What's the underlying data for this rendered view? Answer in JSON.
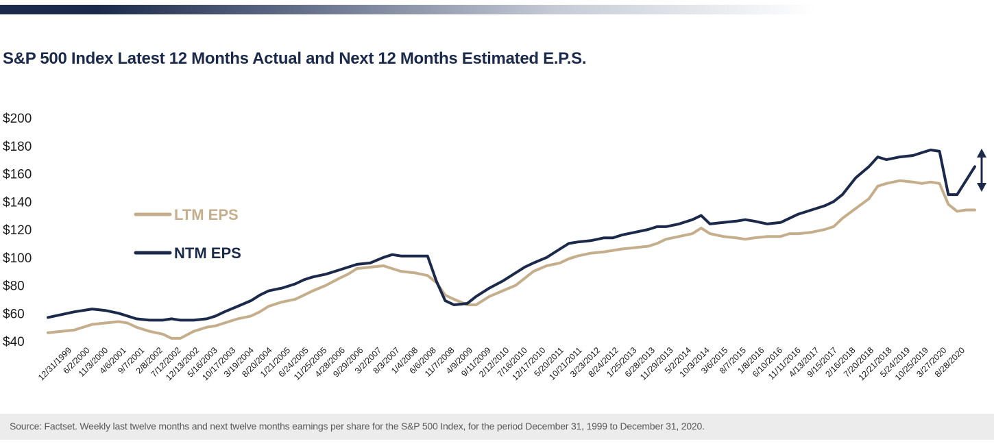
{
  "chart_data": {
    "type": "line",
    "title": "S&P 500 Index Latest 12 Months Actual and Next 12 Months Estimated E.P.S.",
    "ylim": [
      40,
      200
    ],
    "y_ticks": [
      "$200",
      "$180",
      "$160",
      "$140",
      "$120",
      "$100",
      "$80",
      "$60",
      "$40"
    ],
    "y_tick_values": [
      200,
      180,
      160,
      140,
      120,
      100,
      80,
      60,
      40
    ],
    "x_tick_labels": [
      "12/31/1999",
      "6/2/2000",
      "11/3/2000",
      "4/6/2001",
      "9/7/2001",
      "2/8/2002",
      "7/12/2002",
      "12/13/2002",
      "5/16/2003",
      "10/17/2003",
      "3/19/2004",
      "8/20/2004",
      "1/21/2005",
      "6/24/2005",
      "11/25/2005",
      "4/28/2006",
      "9/29/2006",
      "3/2/2007",
      "8/3/2007",
      "1/4/2008",
      "6/6/2008",
      "11/7/2008",
      "4/9/2009",
      "9/11/2009",
      "2/12/2010",
      "7/16/2010",
      "12/17/2010",
      "5/20/2011",
      "10/21/2011",
      "3/23/2012",
      "8/24/2012",
      "1/25/2013",
      "6/28/2013",
      "11/29/2013",
      "5/2/2014",
      "10/3/2014",
      "3/6/2015",
      "8/7/2015",
      "1/8/2016",
      "6/10/2016",
      "11/11/2016",
      "4/13/2017",
      "9/15/2017",
      "2/16/2018",
      "7/20/2018",
      "12/21/2018",
      "5/24/2019",
      "10/25/2019",
      "3/27/2020",
      "8/28/2020"
    ],
    "x_range": [
      "12/31/1999",
      "12/31/2020"
    ],
    "grid": false,
    "legend_position": "left",
    "series": [
      {
        "name": "LTM EPS",
        "color": "#c4ae8c",
        "x": [
          2000.0,
          2000.3,
          2000.6,
          2000.8,
          2001.0,
          2001.3,
          2001.6,
          2001.8,
          2002.0,
          2002.3,
          2002.6,
          2002.8,
          2003.0,
          2003.3,
          2003.6,
          2003.8,
          2004.0,
          2004.3,
          2004.6,
          2004.8,
          2005.0,
          2005.3,
          2005.6,
          2005.8,
          2006.0,
          2006.3,
          2006.6,
          2006.8,
          2007.0,
          2007.3,
          2007.6,
          2007.8,
          2008.0,
          2008.3,
          2008.6,
          2008.8,
          2009.0,
          2009.2,
          2009.5,
          2009.7,
          2010.0,
          2010.3,
          2010.6,
          2010.8,
          2011.0,
          2011.3,
          2011.6,
          2011.8,
          2012.0,
          2012.3,
          2012.6,
          2012.8,
          2013.0,
          2013.3,
          2013.6,
          2013.8,
          2014.0,
          2014.3,
          2014.6,
          2014.8,
          2015.0,
          2015.3,
          2015.6,
          2015.8,
          2016.0,
          2016.3,
          2016.6,
          2016.8,
          2017.0,
          2017.3,
          2017.6,
          2017.8,
          2018.0,
          2018.3,
          2018.6,
          2018.8,
          2019.0,
          2019.3,
          2019.6,
          2019.8,
          2020.0,
          2020.2,
          2020.4,
          2020.6,
          2020.8,
          2021.0
        ],
        "values": [
          46,
          47,
          48,
          50,
          52,
          53,
          54,
          53,
          50,
          47,
          45,
          42,
          42,
          47,
          50,
          51,
          53,
          56,
          58,
          61,
          65,
          68,
          70,
          73,
          76,
          80,
          85,
          88,
          92,
          93,
          94,
          92,
          90,
          89,
          87,
          82,
          73,
          70,
          66,
          66,
          72,
          76,
          80,
          85,
          90,
          94,
          96,
          99,
          101,
          103,
          104,
          105,
          106,
          107,
          108,
          110,
          113,
          115,
          117,
          121,
          117,
          115,
          114,
          113,
          114,
          115,
          115,
          117,
          117,
          118,
          120,
          122,
          128,
          135,
          142,
          151,
          153,
          155,
          154,
          153,
          154,
          153,
          138,
          133,
          134,
          134
        ]
      },
      {
        "name": "NTM EPS",
        "color": "#1b2a4a",
        "x": [
          2000.0,
          2000.3,
          2000.6,
          2000.8,
          2001.0,
          2001.3,
          2001.6,
          2001.8,
          2002.0,
          2002.3,
          2002.6,
          2002.8,
          2003.0,
          2003.3,
          2003.6,
          2003.8,
          2004.0,
          2004.3,
          2004.6,
          2004.8,
          2005.0,
          2005.3,
          2005.6,
          2005.8,
          2006.0,
          2006.3,
          2006.6,
          2006.8,
          2007.0,
          2007.3,
          2007.6,
          2007.8,
          2008.0,
          2008.3,
          2008.6,
          2008.8,
          2009.0,
          2009.2,
          2009.5,
          2009.7,
          2010.0,
          2010.3,
          2010.6,
          2010.8,
          2011.0,
          2011.3,
          2011.6,
          2011.8,
          2012.0,
          2012.3,
          2012.6,
          2012.8,
          2013.0,
          2013.3,
          2013.6,
          2013.8,
          2014.0,
          2014.3,
          2014.6,
          2014.8,
          2015.0,
          2015.3,
          2015.6,
          2015.8,
          2016.0,
          2016.3,
          2016.6,
          2016.8,
          2017.0,
          2017.3,
          2017.6,
          2017.8,
          2018.0,
          2018.3,
          2018.6,
          2018.8,
          2019.0,
          2019.3,
          2019.6,
          2019.8,
          2020.0,
          2020.2,
          2020.4,
          2020.6,
          2020.8,
          2021.0
        ],
        "values": [
          57,
          59,
          61,
          62,
          63,
          62,
          60,
          58,
          56,
          55,
          55,
          56,
          55,
          55,
          56,
          58,
          61,
          65,
          69,
          73,
          76,
          78,
          81,
          84,
          86,
          88,
          91,
          93,
          95,
          96,
          100,
          102,
          101,
          101,
          101,
          83,
          69,
          66,
          67,
          72,
          78,
          83,
          89,
          93,
          96,
          100,
          106,
          110,
          111,
          112,
          114,
          114,
          116,
          118,
          120,
          122,
          122,
          124,
          127,
          130,
          124,
          125,
          126,
          127,
          126,
          124,
          125,
          128,
          131,
          134,
          137,
          140,
          145,
          157,
          165,
          172,
          170,
          172,
          173,
          175,
          177,
          176,
          145,
          145,
          155,
          165
        ]
      }
    ],
    "range_arrow": {
      "from": 147,
      "to": 178
    }
  },
  "footer": {
    "source": "Source: Factset. Weekly last twelve months and next twelve months earnings per share for the S&P 500 Index, for the period December 31, 1999 to December 31, 2020."
  }
}
